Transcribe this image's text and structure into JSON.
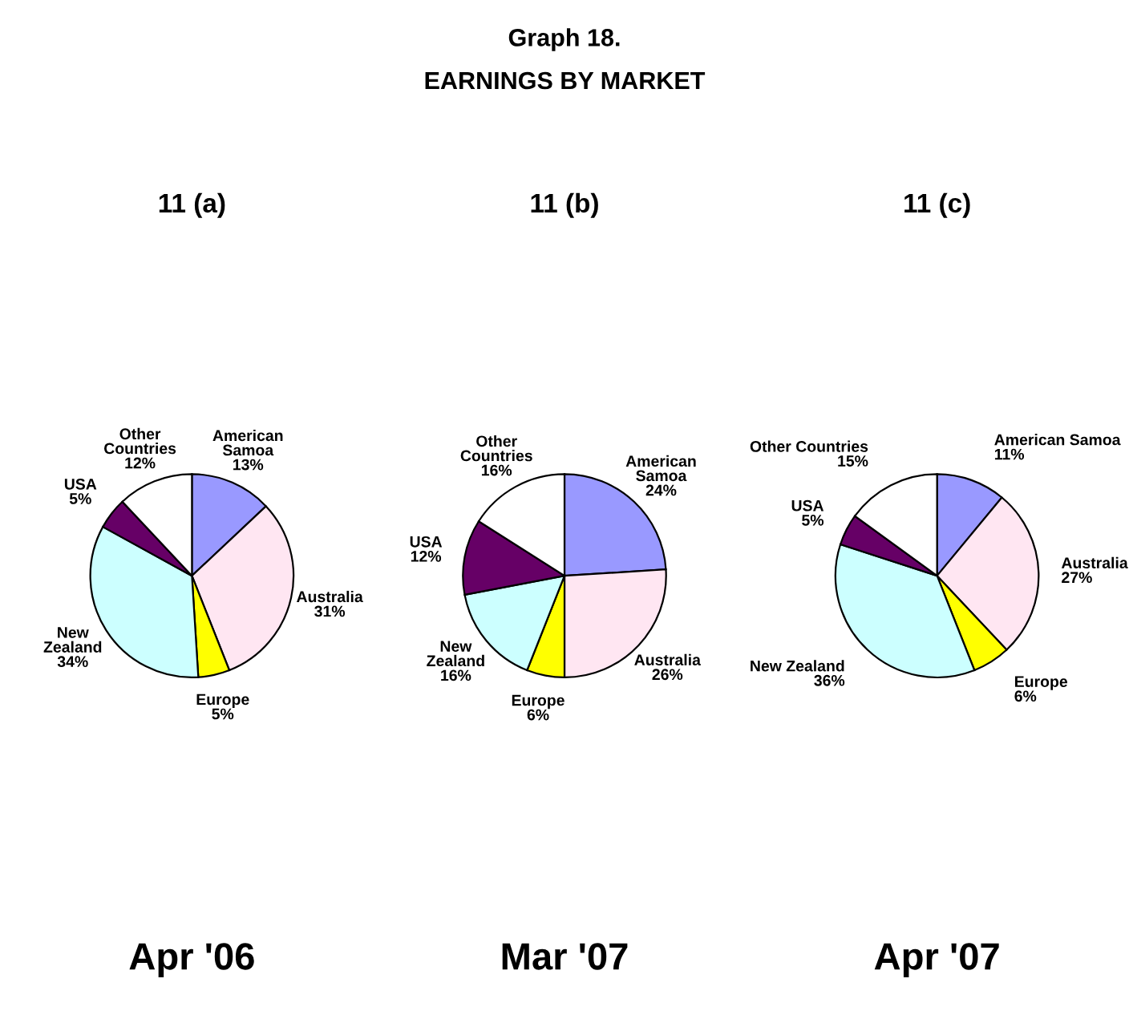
{
  "chart_data": [
    {
      "type": "pie",
      "title": "11 (a)",
      "annotations": [
        "Graph 18.",
        "EARNINGS BY MARKET",
        "Apr '06"
      ],
      "categories": [
        "American Samoa",
        "Australia",
        "Europe",
        "New Zealand",
        "USA",
        "Other Countries"
      ],
      "values": [
        13,
        31,
        5,
        34,
        5,
        12
      ],
      "value_labels": [
        "13%",
        "31%",
        "5%",
        "34%",
        "5%",
        "12%"
      ],
      "colors": [
        "#9999ff",
        "#ffe6f2",
        "#ffff00",
        "#ccffff",
        "#660066",
        "#ffffff"
      ],
      "legend": false
    },
    {
      "type": "pie",
      "title": "11 (b)",
      "annotations": [
        "Mar '07"
      ],
      "categories": [
        "American Samoa",
        "Australia",
        "Europe",
        "New Zealand",
        "USA",
        "Other Countries"
      ],
      "values": [
        24,
        26,
        6,
        16,
        12,
        16
      ],
      "value_labels": [
        "24%",
        "26%",
        "6%",
        "16%",
        "12%",
        "16%"
      ],
      "colors": [
        "#9999ff",
        "#ffe6f2",
        "#ffff00",
        "#ccffff",
        "#660066",
        "#ffffff"
      ],
      "legend": false
    },
    {
      "type": "pie",
      "title": "11 (c)",
      "annotations": [
        "Apr '07"
      ],
      "categories": [
        "American Samoa",
        "Australia",
        "Europe",
        "New Zealand",
        "USA",
        "Other Countries"
      ],
      "values": [
        11,
        27,
        6,
        36,
        5,
        15
      ],
      "value_labels": [
        "11%",
        "27%",
        "6%",
        "36%",
        "5%",
        "15%"
      ],
      "colors": [
        "#9999ff",
        "#ffe6f2",
        "#ffff00",
        "#ccffff",
        "#660066",
        "#ffffff"
      ],
      "legend": false
    }
  ]
}
